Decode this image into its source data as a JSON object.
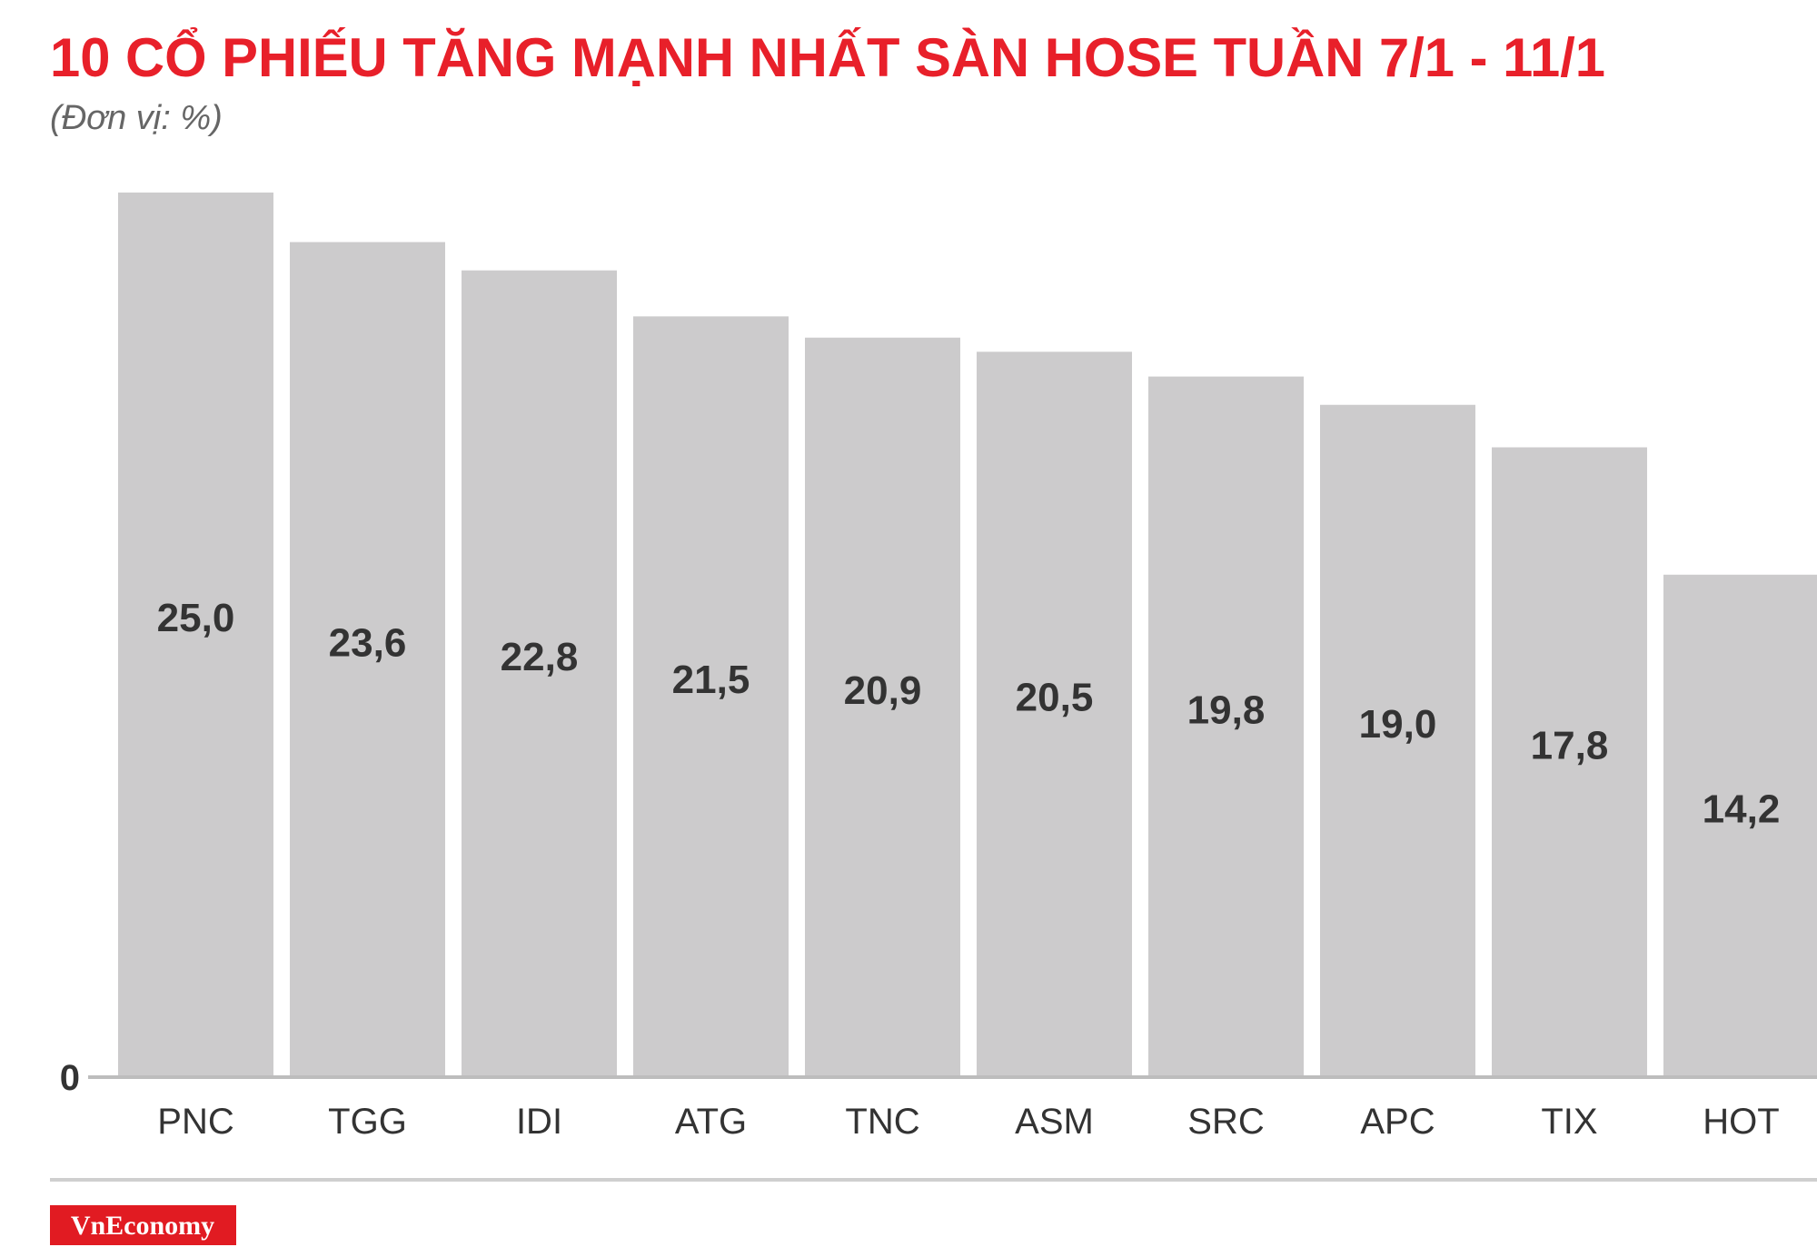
{
  "chart_data": {
    "type": "bar",
    "title": "10 CỔ PHIẾU TĂNG MẠNH NHẤT SÀN HOSE TUẦN 7/1 - 11/1",
    "subtitle": "(Đơn vị: %)",
    "categories": [
      "PNC",
      "TGG",
      "IDI",
      "ATG",
      "TNC",
      "ASM",
      "SRC",
      "APC",
      "TIX",
      "HOT"
    ],
    "values": [
      25.0,
      23.6,
      22.8,
      21.5,
      20.9,
      20.5,
      19.8,
      19.0,
      17.8,
      14.2
    ],
    "value_labels": [
      "25,0",
      "23,6",
      "22,8",
      "21,5",
      "20,9",
      "20,5",
      "19,8",
      "19,0",
      "17,8",
      "14,2"
    ],
    "color": "#cccbcc",
    "ylim": [
      0,
      25
    ],
    "yticks": [
      0
    ],
    "grid": false
  },
  "footer": {
    "logo": "VnEconomy"
  }
}
